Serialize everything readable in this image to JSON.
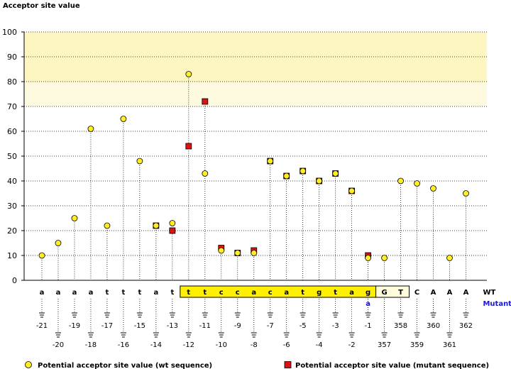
{
  "chart_data": {
    "type": "scatter",
    "title": "Acceptor site value",
    "ylim": [
      0,
      100
    ],
    "yticks": [
      0,
      10,
      20,
      30,
      40,
      50,
      60,
      70,
      80,
      90,
      100
    ],
    "highlight_bands": [
      {
        "from": 80,
        "to": 100,
        "color": "#fdf6c0"
      },
      {
        "from": 70,
        "to": 80,
        "color": "#fdfae0"
      }
    ],
    "positions": [
      {
        "base": "a",
        "pos": "-21",
        "wt": 10,
        "box": "none"
      },
      {
        "base": "a",
        "pos": "-20",
        "wt": 15,
        "box": "none"
      },
      {
        "base": "a",
        "pos": "-19",
        "wt": 25,
        "box": "none"
      },
      {
        "base": "a",
        "pos": "-18",
        "wt": 61,
        "box": "none"
      },
      {
        "base": "t",
        "pos": "-17",
        "wt": 22,
        "box": "none"
      },
      {
        "base": "t",
        "pos": "-16",
        "wt": 65,
        "box": "none"
      },
      {
        "base": "t",
        "pos": "-15",
        "wt": 48,
        "box": "none"
      },
      {
        "base": "a",
        "pos": "-14",
        "wt": 22,
        "mut": 22,
        "box": "none"
      },
      {
        "base": "t",
        "pos": "-13",
        "wt": 23,
        "mut": 20,
        "box": "none"
      },
      {
        "base": "t",
        "pos": "-12",
        "wt": 83,
        "mut": 54,
        "box": "yellow"
      },
      {
        "base": "t",
        "pos": "-11",
        "wt": 43,
        "mut": 72,
        "box": "yellow"
      },
      {
        "base": "c",
        "pos": "-10",
        "wt": 12,
        "mut": 13,
        "box": "yellow"
      },
      {
        "base": "c",
        "pos": "-9",
        "wt": 11,
        "mut": 11,
        "box": "yellow"
      },
      {
        "base": "a",
        "pos": "-8",
        "wt": 11,
        "mut": 12,
        "box": "yellow"
      },
      {
        "base": "c",
        "pos": "-7",
        "wt": 48,
        "mut": 48,
        "box": "yellow"
      },
      {
        "base": "a",
        "pos": "-6",
        "wt": 42,
        "mut": 42,
        "box": "yellow"
      },
      {
        "base": "t",
        "pos": "-5",
        "wt": 44,
        "mut": 44,
        "box": "yellow"
      },
      {
        "base": "g",
        "pos": "-4",
        "wt": 40,
        "mut": 40,
        "box": "yellow"
      },
      {
        "base": "t",
        "pos": "-3",
        "wt": 43,
        "mut": 43,
        "box": "yellow"
      },
      {
        "base": "a",
        "pos": "-2",
        "wt": 36,
        "mut": 36,
        "box": "yellow"
      },
      {
        "base": "g",
        "pos": "-1",
        "wt": 9,
        "mut": 10,
        "box": "yellow",
        "mutant_base": "a"
      },
      {
        "base": "G",
        "pos": "357",
        "wt": 9,
        "box": "cream"
      },
      {
        "base": "T",
        "pos": "358",
        "wt": 40,
        "box": "cream"
      },
      {
        "base": "C",
        "pos": "359",
        "wt": 39,
        "box": "none"
      },
      {
        "base": "A",
        "pos": "360",
        "wt": 37,
        "box": "none"
      },
      {
        "base": "A",
        "pos": "361",
        "wt": 9,
        "box": "none"
      },
      {
        "base": "A",
        "pos": "362",
        "wt": 35,
        "box": "none"
      }
    ],
    "row_labels": {
      "wt": "WT",
      "mutant": "Mutant"
    },
    "legend": {
      "wt": "Potential acceptor site value (wt sequence)",
      "mutant": "Potential acceptor site value (mutant sequence)"
    },
    "colors": {
      "wt": "#ffee22",
      "mutant": "#dd1111",
      "mutant_text": "#1a1acc",
      "box": "#fff000",
      "cream": "#fffcdc"
    }
  }
}
